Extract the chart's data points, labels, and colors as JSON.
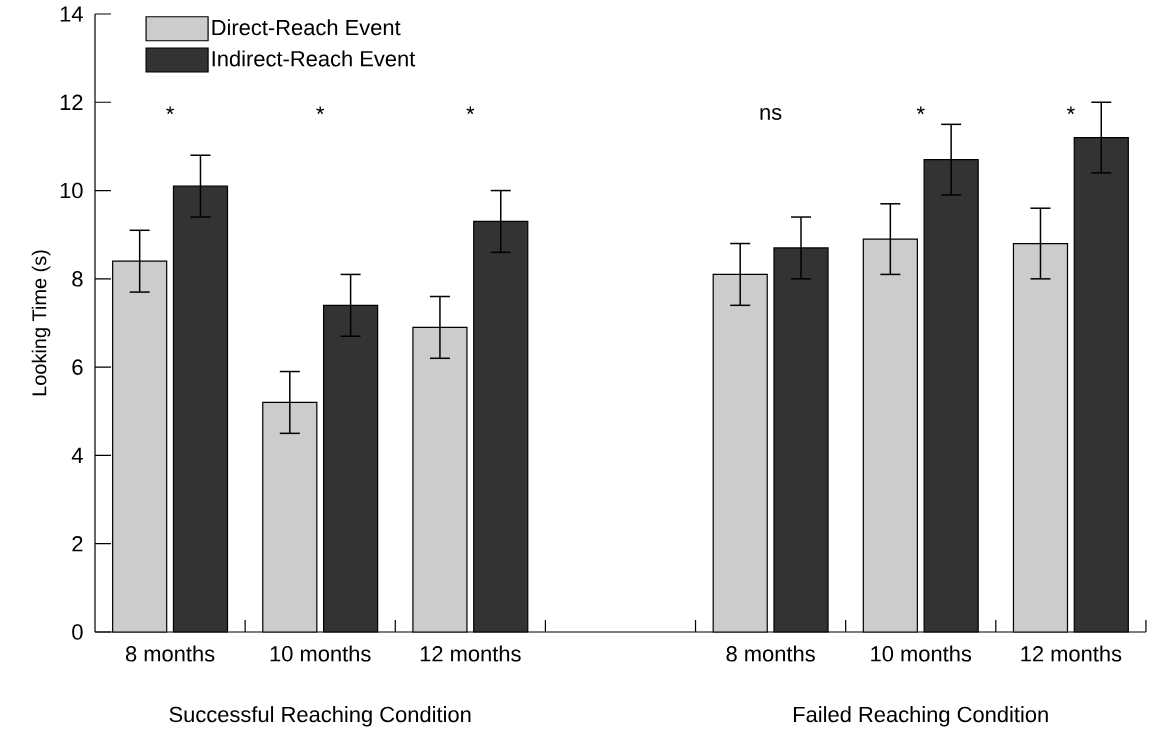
{
  "chart_data": {
    "type": "bar",
    "ylabel": "Looking Time (s)",
    "categories": [
      "8 months",
      "10 months",
      "12 months",
      null,
      "8 months",
      "10 months",
      "12 months"
    ],
    "series": [
      {
        "name": "Direct-Reach Event",
        "color": "#cccccc",
        "values": [
          8.4,
          5.2,
          6.9,
          null,
          8.1,
          8.9,
          8.8
        ],
        "errors": [
          0.7,
          0.7,
          0.7,
          null,
          0.7,
          0.8,
          0.8
        ]
      },
      {
        "name": "Indirect-Reach Event",
        "color": "#333333",
        "values": [
          10.1,
          7.4,
          9.3,
          null,
          8.7,
          10.7,
          11.2
        ],
        "errors": [
          0.7,
          0.7,
          0.7,
          null,
          0.7,
          0.8,
          0.8
        ]
      }
    ],
    "ylim": [
      0,
      14
    ],
    "yticks": [
      0,
      2,
      4,
      6,
      8,
      10,
      12,
      14
    ],
    "legend": "top left",
    "annotations": [
      "*",
      "*",
      "*",
      "ns",
      "*",
      "*",
      "Successful Reaching Condition",
      "Failed Reaching Condition"
    ]
  }
}
